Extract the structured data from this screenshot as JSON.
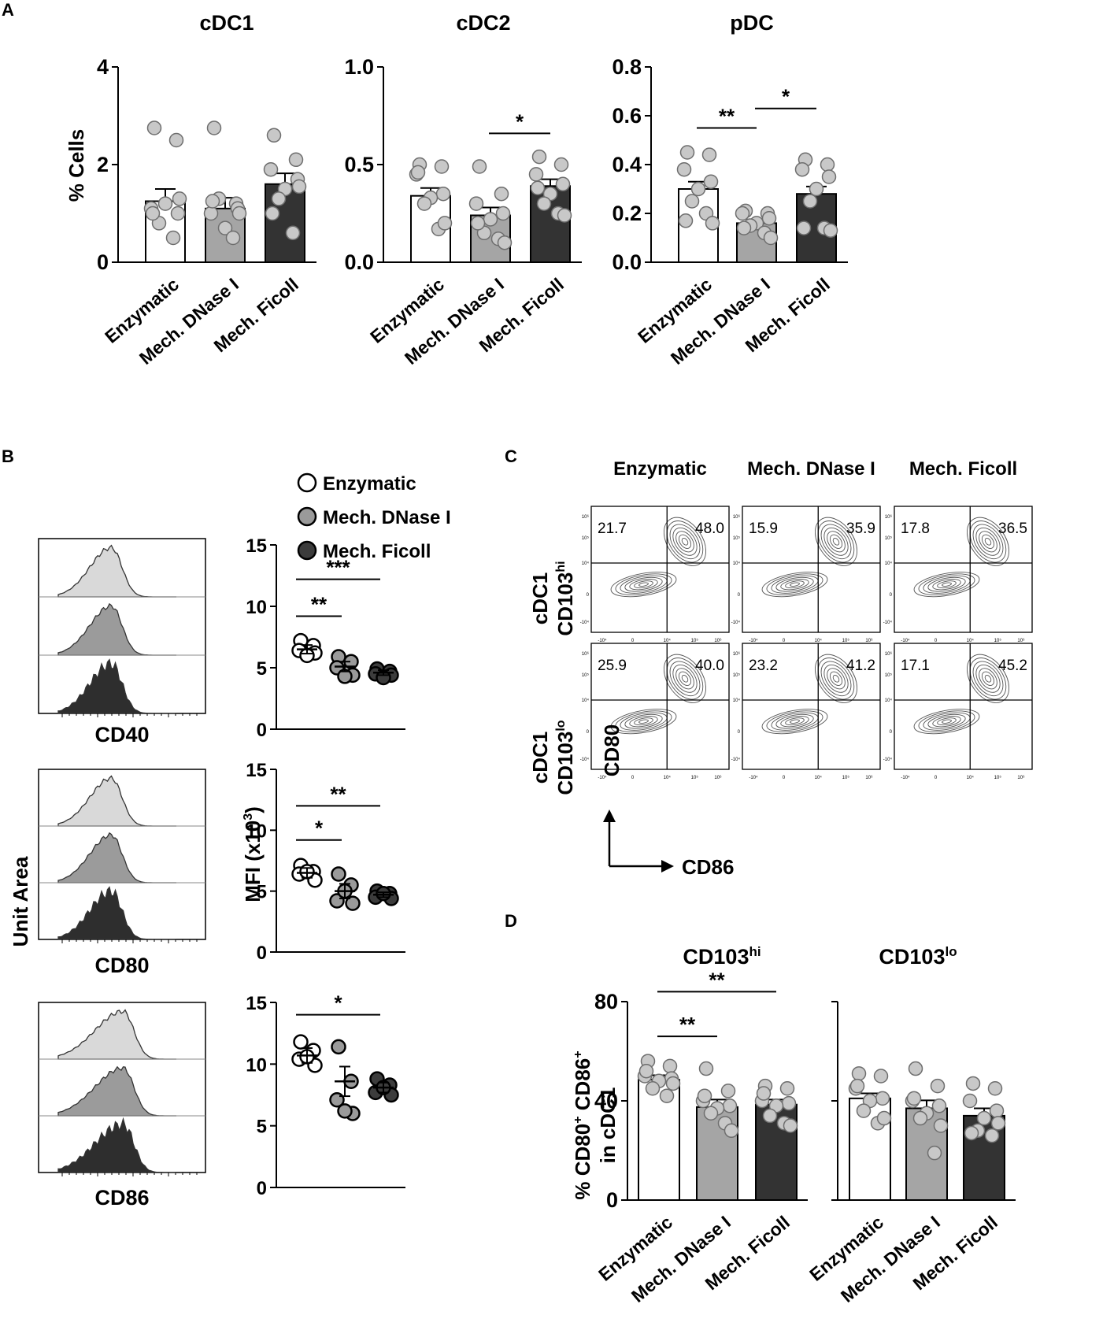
{
  "colors": {
    "white": "#ffffff",
    "light": "#bebebe",
    "mid": "#a5a5a5",
    "dark": "#333333",
    "dot_light": "#c8c8c8",
    "dot_mid": "#9a9a9a",
    "dot_dark": "#3c3c3c",
    "hist_light": "#d9d9d9",
    "hist_mid": "#9b9b9b",
    "hist_dark": "#2e2e2e"
  },
  "groups": [
    "Enzymatic",
    "Mech. DNase I",
    "Mech. Ficoll"
  ],
  "panels": {
    "A": "A",
    "B": "B",
    "C": "C",
    "D": "D"
  },
  "legend": {
    "items": [
      "Enzymatic",
      "Mech. DNase I",
      "Mech. Ficoll"
    ]
  },
  "labels": {
    "pct_cells": "% Cells",
    "unit_area": "Unit Area",
    "mfi": "MFI (x10",
    "mfi_sup": "3",
    "mfi_close": ")",
    "d_ylabel_line1": "% CD80",
    "d_ylabel_sup1": "+",
    "d_ylabel_mid": " CD86",
    "d_ylabel_sup2": "+",
    "d_ylabel_line2": "in cDC1",
    "c_row1_a": "cDC1",
    "c_row1_b": "CD103",
    "c_row1_sup": "hi",
    "c_row2_a": "cDC1",
    "c_row2_b": "CD103",
    "c_row2_sup": "lo",
    "c_yaxis": "CD80",
    "c_xaxis": "CD86"
  },
  "chart_data": [
    {
      "id": "A-cDC1",
      "type": "bar",
      "title": "cDC1",
      "ylabel": "% Cells",
      "categories": [
        "Enzymatic",
        "Mech. DNase I",
        "Mech. Ficoll"
      ],
      "ylim": [
        0,
        4
      ],
      "yticks": [
        "0",
        "2",
        "4"
      ],
      "ytick_values": [
        0,
        2,
        4
      ],
      "values": [
        1.25,
        1.1,
        1.6
      ],
      "sem": [
        0.25,
        0.22,
        0.22
      ],
      "points": [
        [
          2.75,
          2.5,
          1.1,
          1.0,
          1.2,
          0.8,
          0.5,
          1.3,
          1.0
        ],
        [
          2.75,
          1.2,
          1.0,
          1.1,
          0.7,
          1.3,
          0.5,
          1.0,
          1.25
        ],
        [
          2.6,
          2.1,
          1.9,
          1.7,
          1.5,
          1.3,
          0.6,
          1.55,
          1.0
        ]
      ],
      "significance": []
    },
    {
      "id": "A-cDC2",
      "type": "bar",
      "title": "cDC2",
      "ylabel": "",
      "categories": [
        "Enzymatic",
        "Mech. DNase I",
        "Mech. Ficoll"
      ],
      "ylim": [
        0,
        1.0
      ],
      "yticks": [
        "0.0",
        "0.5",
        "1.0"
      ],
      "ytick_values": [
        0,
        0.5,
        1.0
      ],
      "values": [
        0.34,
        0.24,
        0.39
      ],
      "sem": [
        0.04,
        0.04,
        0.035
      ],
      "points": [
        [
          0.5,
          0.49,
          0.45,
          0.35,
          0.33,
          0.3,
          0.17,
          0.2,
          0.46
        ],
        [
          0.49,
          0.35,
          0.3,
          0.25,
          0.22,
          0.15,
          0.12,
          0.1,
          0.2
        ],
        [
          0.54,
          0.5,
          0.45,
          0.4,
          0.35,
          0.3,
          0.25,
          0.24,
          0.38
        ]
      ],
      "significance": [
        {
          "from": 1,
          "to": 2,
          "label": "*",
          "y": 0.66
        }
      ]
    },
    {
      "id": "A-pDC",
      "type": "bar",
      "title": "pDC",
      "ylabel": "",
      "categories": [
        "Enzymatic",
        "Mech. DNase I",
        "Mech. Ficoll"
      ],
      "ylim": [
        0,
        0.8
      ],
      "yticks": [
        "0.0",
        "0.2",
        "0.4",
        "0.6",
        "0.8"
      ],
      "ytick_values": [
        0,
        0.2,
        0.4,
        0.6,
        0.8
      ],
      "values": [
        0.3,
        0.16,
        0.28
      ],
      "sem": [
        0.03,
        0.015,
        0.03
      ],
      "points": [
        [
          0.45,
          0.44,
          0.38,
          0.33,
          0.3,
          0.25,
          0.2,
          0.16,
          0.17
        ],
        [
          0.21,
          0.2,
          0.2,
          0.18,
          0.16,
          0.15,
          0.12,
          0.1,
          0.14
        ],
        [
          0.42,
          0.4,
          0.38,
          0.35,
          0.3,
          0.25,
          0.14,
          0.13,
          0.14
        ]
      ],
      "significance": [
        {
          "from": 0,
          "to": 1,
          "label": "**",
          "y": 0.55
        },
        {
          "from": 1,
          "to": 2,
          "label": "*",
          "y": 0.63
        }
      ]
    },
    {
      "id": "B-CD40",
      "type": "scatter",
      "marker": "CD40",
      "ylabel": "",
      "categories": [
        "Enzymatic",
        "Mech. DNase I",
        "Mech. Ficoll"
      ],
      "ylim": [
        0,
        15
      ],
      "yticks": [
        "0",
        "5",
        "10",
        "15"
      ],
      "ytick_values": [
        0,
        5,
        10,
        15
      ],
      "means": [
        6.5,
        5.1,
        4.6
      ],
      "sem": [
        0.35,
        0.4,
        0.2
      ],
      "points": [
        [
          7.2,
          6.8,
          6.4,
          6.2,
          6.0
        ],
        [
          5.9,
          5.5,
          5.0,
          4.4,
          4.3
        ],
        [
          4.9,
          4.7,
          4.5,
          4.4,
          4.2
        ]
      ],
      "significance": [
        {
          "from": 0,
          "to": 1,
          "label": "**",
          "y": 9.2
        },
        {
          "from": 0,
          "to": 2,
          "label": "***",
          "y": 12.2
        }
      ]
    },
    {
      "id": "B-CD80",
      "type": "scatter",
      "marker": "CD80",
      "ylabel": "MFI (x10³)",
      "categories": [
        "Enzymatic",
        "Mech. DNase I",
        "Mech. Ficoll"
      ],
      "ylim": [
        0,
        15
      ],
      "yticks": [
        "0",
        "5",
        "10",
        "15"
      ],
      "ytick_values": [
        0,
        5,
        10,
        15
      ],
      "means": [
        6.5,
        5.0,
        4.7
      ],
      "sem": [
        0.4,
        0.6,
        0.2
      ],
      "points": [
        [
          7.1,
          6.6,
          6.4,
          5.9,
          6.6
        ],
        [
          6.4,
          5.5,
          4.2,
          4.0,
          5.0
        ],
        [
          5.0,
          4.8,
          4.5,
          4.4,
          4.8
        ]
      ],
      "significance": [
        {
          "from": 0,
          "to": 1,
          "label": "*",
          "y": 9.2
        },
        {
          "from": 0,
          "to": 2,
          "label": "**",
          "y": 12.0
        }
      ]
    },
    {
      "id": "B-CD86",
      "type": "scatter",
      "marker": "CD86",
      "ylabel": "",
      "categories": [
        "Enzymatic",
        "Mech. DNase I",
        "Mech. Ficoll"
      ],
      "ylim": [
        0,
        15
      ],
      "yticks": [
        "0",
        "5",
        "10",
        "15"
      ],
      "ytick_values": [
        0,
        5,
        10,
        15
      ],
      "means": [
        10.7,
        8.6,
        8.1
      ],
      "sem": [
        0.6,
        1.2,
        0.4
      ],
      "points": [
        [
          11.8,
          11.1,
          10.4,
          9.9,
          10.6
        ],
        [
          11.4,
          8.6,
          7.1,
          6.0,
          6.2
        ],
        [
          8.8,
          8.3,
          7.7,
          7.5,
          8.1
        ]
      ],
      "significance": [
        {
          "from": 0,
          "to": 2,
          "label": "*",
          "y": 14.0
        }
      ]
    },
    {
      "id": "D-CD103hi",
      "type": "bar",
      "title": "CD103",
      "title_sup": "hi",
      "categories": [
        "Enzymatic",
        "Mech. DNase I",
        "Mech. Ficoll"
      ],
      "ylim": [
        0,
        80
      ],
      "yticks": [
        "0",
        "40",
        "80"
      ],
      "ytick_values": [
        0,
        40,
        80
      ],
      "values": [
        48.5,
        37.5,
        38.5
      ],
      "sem": [
        1.8,
        3.0,
        2.0
      ],
      "points": [
        [
          56,
          54,
          50,
          49,
          48,
          45,
          42,
          47,
          52
        ],
        [
          53,
          44,
          40,
          38,
          37,
          35,
          31,
          28,
          42
        ],
        [
          46,
          45,
          40,
          39,
          38,
          34,
          31,
          30,
          43
        ]
      ],
      "significance": [
        {
          "from": 0,
          "to": 1,
          "label": "**",
          "y": 66
        },
        {
          "from": 0,
          "to": 2,
          "label": "**",
          "y": 84
        }
      ]
    },
    {
      "id": "D-CD103lo",
      "type": "bar",
      "title": "CD103",
      "title_sup": "lo",
      "categories": [
        "Enzymatic",
        "Mech. DNase I",
        "Mech. Ficoll"
      ],
      "ylim": [
        0,
        80
      ],
      "yticks": [],
      "ytick_values": [
        0,
        40,
        80
      ],
      "values": [
        41,
        37,
        34
      ],
      "sem": [
        2.0,
        3.2,
        3.0
      ],
      "points": [
        [
          51,
          50,
          45,
          41,
          40,
          36,
          31,
          33,
          46
        ],
        [
          53,
          46,
          40,
          38,
          35,
          33,
          19,
          30,
          41
        ],
        [
          47,
          45,
          40,
          36,
          33,
          28,
          26,
          31,
          27
        ]
      ],
      "significance": []
    }
  ],
  "flow_plots": {
    "column_titles": [
      "Enzymatic",
      "Mech. DNase I",
      "Mech. Ficoll"
    ],
    "rows": [
      {
        "id": "hi",
        "ul": [
          "21.7",
          "15.9",
          "17.8"
        ],
        "ur": [
          "48.0",
          "35.9",
          "36.5"
        ]
      },
      {
        "id": "lo",
        "ul": [
          "25.9",
          "23.2",
          "17.1"
        ],
        "ur": [
          "40.0",
          "41.2",
          "45.2"
        ]
      }
    ],
    "axis_ticks": [
      "-10⁴",
      "0",
      "10⁴",
      "10⁵",
      "10⁶"
    ]
  }
}
